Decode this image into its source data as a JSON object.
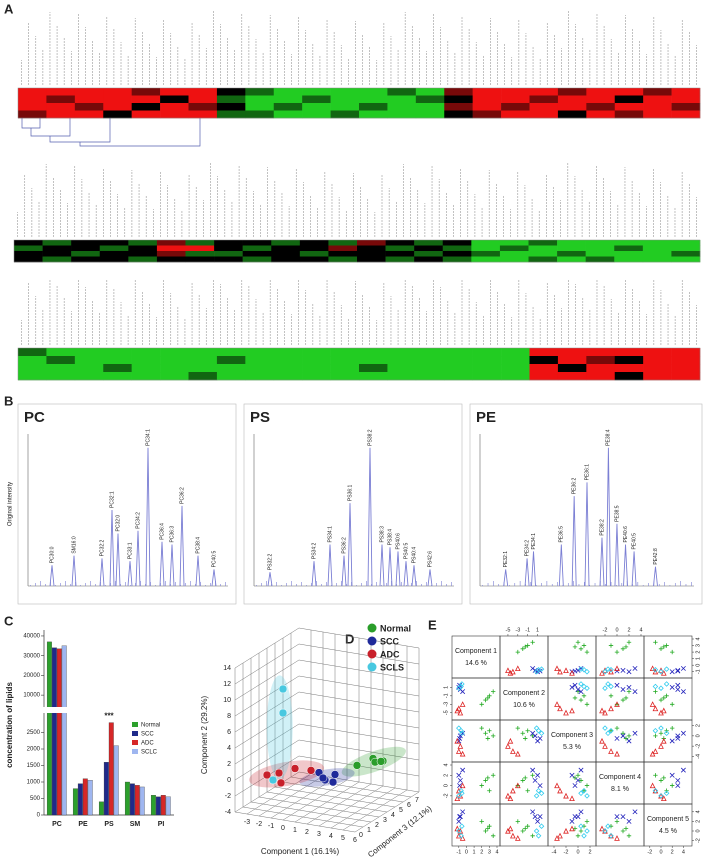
{
  "panel_labels": [
    "A",
    "B",
    "C",
    "D",
    "E"
  ],
  "chart_data": [
    {
      "type": "heatmap",
      "zlim": [
        -2,
        2
      ],
      "colors": {
        "low": "#22cc22",
        "mid": "#000000",
        "high": "#ee1111"
      },
      "blocks": [
        {
          "rows": [
            [
              2,
              2,
              2,
              2,
              1,
              2,
              2,
              0,
              -1,
              -2,
              -2,
              -2,
              -2,
              -1,
              -2,
              1,
              2,
              2,
              2,
              1,
              2,
              2,
              1,
              2
            ],
            [
              2,
              1,
              2,
              2,
              2,
              0,
              2,
              -1,
              -2,
              -2,
              -1,
              -2,
              -2,
              -2,
              -1,
              0,
              2,
              2,
              1,
              2,
              2,
              0,
              2,
              2
            ],
            [
              2,
              2,
              1,
              2,
              0,
              2,
              1,
              0,
              -2,
              -1,
              -2,
              -2,
              -1,
              -2,
              -2,
              1,
              2,
              1,
              2,
              2,
              1,
              2,
              2,
              1
            ],
            [
              1,
              2,
              2,
              0,
              2,
              2,
              2,
              -1,
              -1,
              -2,
              -2,
              -1,
              -2,
              -2,
              -2,
              0,
              1,
              2,
              2,
              0,
              2,
              1,
              2,
              2
            ]
          ]
        },
        {
          "rows": [
            [
              0,
              -1,
              0,
              0,
              -1,
              1,
              -1,
              0,
              0,
              -1,
              0,
              -1,
              1,
              0,
              -1,
              0,
              -2,
              -2,
              -1,
              -2,
              -2,
              -2,
              -2,
              -2
            ],
            [
              -1,
              0,
              0,
              -1,
              0,
              2,
              2,
              0,
              -1,
              0,
              0,
              1,
              0,
              -1,
              0,
              -1,
              -2,
              -1,
              -2,
              -2,
              -2,
              -1,
              -2,
              -2
            ],
            [
              0,
              0,
              -1,
              0,
              0,
              1,
              -1,
              -1,
              0,
              0,
              -1,
              0,
              0,
              0,
              -1,
              0,
              -1,
              -2,
              -2,
              -1,
              -2,
              -2,
              -2,
              -1
            ],
            [
              0,
              -1,
              0,
              0,
              -1,
              0,
              0,
              0,
              -1,
              0,
              0,
              -1,
              0,
              -1,
              0,
              -1,
              -2,
              -2,
              -1,
              -2,
              -1,
              -2,
              -2,
              -2
            ]
          ]
        },
        {
          "rows": [
            [
              -1,
              -2,
              -2,
              -2,
              -2,
              -2,
              -2,
              -2,
              -2,
              -2,
              -2,
              -2,
              -2,
              -2,
              -2,
              -2,
              -2,
              -2,
              2,
              2,
              2,
              2,
              2,
              2
            ],
            [
              -2,
              -1,
              -2,
              -2,
              -2,
              -2,
              -2,
              -1,
              -2,
              -2,
              -2,
              -2,
              -2,
              -2,
              -2,
              -2,
              -2,
              -2,
              0,
              2,
              1,
              0,
              2,
              2
            ],
            [
              -2,
              -2,
              -2,
              -1,
              -2,
              -2,
              -2,
              -2,
              -2,
              -2,
              -2,
              -2,
              -1,
              -2,
              -2,
              -2,
              -2,
              -2,
              2,
              0,
              2,
              2,
              2,
              2
            ],
            [
              -2,
              -2,
              -2,
              -2,
              -2,
              -2,
              -1,
              -2,
              -2,
              -2,
              -2,
              -2,
              -2,
              -2,
              -2,
              -2,
              -2,
              -2,
              2,
              2,
              2,
              0,
              2,
              2
            ]
          ]
        }
      ]
    },
    {
      "type": "spectrum",
      "title": "PC",
      "ylabel": "Original intensity",
      "color": "#7b7fd4",
      "xlim": [
        0,
        100
      ],
      "ylim": [
        0,
        110
      ],
      "x": [
        12,
        23,
        37,
        42,
        45,
        51,
        55,
        60,
        67,
        72,
        77,
        85,
        93
      ],
      "values": [
        15,
        22,
        20,
        55,
        38,
        18,
        40,
        100,
        32,
        30,
        58,
        22,
        12
      ],
      "labels": [
        "PC30:0",
        "SM16:0",
        "PC32:2",
        "PC32:1",
        "PC32:0",
        "PC33:1",
        "PC34:2",
        "PC34:1",
        "PC36:4",
        "PC36:3",
        "PC36:2",
        "PC38:4",
        "PC40:5"
      ]
    },
    {
      "type": "spectrum",
      "title": "PS",
      "color": "#7b7fd4",
      "xlim": [
        0,
        100
      ],
      "ylim": [
        0,
        110
      ],
      "x": [
        8,
        30,
        38,
        45,
        48,
        58,
        64,
        68,
        72,
        76,
        80,
        88
      ],
      "values": [
        10,
        18,
        30,
        22,
        60,
        100,
        30,
        28,
        25,
        18,
        15,
        12
      ],
      "labels": [
        "PS32:2",
        "PS34:2",
        "PS34:1",
        "PS36:2",
        "PS36:1",
        "PS38:2",
        "PS38:3",
        "PS38:4",
        "PS40:6",
        "PS40:5",
        "PS40:4",
        "PS42:6"
      ]
    },
    {
      "type": "spectrum",
      "title": "PE",
      "color": "#7b7fd4",
      "xlim": [
        0,
        100
      ],
      "ylim": [
        0,
        110
      ],
      "x": [
        12,
        22,
        25,
        38,
        44,
        50,
        57,
        60,
        64,
        68,
        72,
        82
      ],
      "values": [
        12,
        20,
        25,
        30,
        65,
        75,
        35,
        100,
        45,
        30,
        25,
        14
      ],
      "labels": [
        "PE32:1",
        "PE34:2",
        "PE34:1",
        "PE36:5",
        "PE36:2",
        "PE36:1",
        "PE38:2",
        "PE38:4",
        "PE38:5",
        "PE40:6",
        "PE40:5",
        "PE42:8"
      ]
    },
    {
      "type": "broken_bar",
      "ylabel": "concentration of lipids",
      "categories": [
        "PC",
        "PE",
        "PS",
        "SM",
        "PI"
      ],
      "segments": [
        {
          "ylim": [
            0,
            3000
          ],
          "yticks": [
            0,
            500,
            1000,
            1500,
            2000,
            2500
          ]
        },
        {
          "ylim": [
            5000,
            42000
          ],
          "yticks": [
            10000,
            20000,
            30000,
            40000
          ]
        }
      ],
      "series": [
        {
          "name": "Normal",
          "color": "#2ca02c",
          "values": [
            37000,
            800,
            400,
            1000,
            600
          ]
        },
        {
          "name": "SCC",
          "color": "#1f2a8a",
          "values": [
            34000,
            950,
            1600,
            950,
            550
          ]
        },
        {
          "name": "ADC",
          "color": "#d62728",
          "values": [
            33500,
            1100,
            2800,
            900,
            600
          ]
        },
        {
          "name": "SCLC",
          "color": "#9fb6f0",
          "values": [
            35000,
            1050,
            2100,
            850,
            550
          ]
        }
      ],
      "annotation": {
        "text": "***",
        "category": 2
      }
    },
    {
      "type": "scatter3d",
      "xlabel": "Component 1 (16.1%)",
      "ylabel": "Component 2 (29.2%)",
      "zlabel": "Component 3 (12.1%)",
      "xlim": [
        -4,
        6
      ],
      "ylim": [
        -4,
        14
      ],
      "zlim": [
        0,
        8
      ],
      "xticks": [
        -3,
        -2,
        -1,
        0,
        1,
        2,
        3,
        4,
        5,
        6
      ],
      "yticks": [
        -4,
        -2,
        0,
        2,
        4,
        6,
        8,
        10,
        12,
        14
      ],
      "zticks": [
        0,
        1,
        2,
        3,
        4,
        5,
        6,
        7
      ],
      "series": [
        {
          "name": "Normal",
          "color": "#2a9d2a",
          "points": [
            [
              3.5,
              1.2,
              4
            ],
            [
              4.5,
              2,
              4.5
            ],
            [
              5,
              1.5,
              5
            ],
            [
              4,
              0.8,
              5.5
            ],
            [
              5.5,
              2.2,
              4
            ]
          ]
        },
        {
          "name": "SCC",
          "color": "#1f2a9a",
          "points": [
            [
              1.5,
              -0.5,
              3
            ],
            [
              2,
              0,
              3.5
            ],
            [
              2.5,
              -0.2,
              2.5
            ],
            [
              1,
              0.3,
              3
            ],
            [
              2,
              0.5,
              2
            ]
          ]
        },
        {
          "name": "ADC",
          "color": "#c8202a",
          "points": [
            [
              -1,
              1,
              1
            ],
            [
              0,
              1.5,
              1.5
            ],
            [
              -2,
              0.5,
              1
            ],
            [
              1,
              1.2,
              2
            ],
            [
              -0.5,
              0.2,
              0.5
            ]
          ]
        },
        {
          "name": "SCLS",
          "color": "#48c8e0",
          "points": [
            [
              -2,
              10,
              3
            ],
            [
              -2,
              7,
              3
            ],
            [
              -1.5,
              0,
              1
            ]
          ]
        }
      ]
    },
    {
      "type": "pairs",
      "components": [
        {
          "name": "Component 1",
          "variance": "14.6 %",
          "lim": [
            -1.5,
            4
          ],
          "ticks": [
            -1,
            0,
            1,
            2,
            3,
            4
          ]
        },
        {
          "name": "Component 2",
          "variance": "10.6 %",
          "lim": [
            -6,
            2.5
          ],
          "ticks": [
            -5,
            -3,
            -1,
            1
          ]
        },
        {
          "name": "Component 3",
          "variance": "5.3 %",
          "lim": [
            -4.5,
            2.5
          ],
          "ticks": [
            -4,
            -2,
            0,
            2
          ]
        },
        {
          "name": "Component 4",
          "variance": "8.1 %",
          "lim": [
            -3,
            4
          ],
          "ticks": [
            -2,
            0,
            2,
            4
          ]
        },
        {
          "name": "Component 5",
          "variance": "4.5 %",
          "lim": [
            -2.5,
            5
          ],
          "ticks": [
            -2,
            0,
            2,
            4
          ]
        }
      ],
      "series": [
        {
          "color": "#22aa22",
          "marker": "plus",
          "points": [
            [
              2.5,
              -2,
              0.5,
              1,
              0
            ],
            [
              3,
              -1,
              1,
              -1,
              1
            ],
            [
              3.5,
              0,
              0,
              2,
              -1
            ],
            [
              2,
              -3,
              1.5,
              0,
              2
            ],
            [
              2.8,
              -1.5,
              -0.5,
              1.5,
              0.5
            ]
          ]
        },
        {
          "color": "#2222bb",
          "marker": "cross",
          "points": [
            [
              -0.8,
              0.5,
              0,
              1,
              3
            ],
            [
              -1,
              1,
              -1,
              2,
              2
            ],
            [
              -0.5,
              0,
              0.5,
              3,
              4
            ],
            [
              -0.9,
              1.5,
              -0.5,
              0,
              3
            ]
          ]
        },
        {
          "color": "#dd2222",
          "marker": "triangle",
          "points": [
            [
              -1,
              -4,
              -3,
              -1,
              -1
            ],
            [
              -0.8,
              -5,
              -2,
              -2,
              0
            ],
            [
              -0.5,
              -3,
              -3.5,
              0,
              -1.5
            ],
            [
              -1.2,
              -4.5,
              -1,
              -2.5,
              0.5
            ]
          ]
        },
        {
          "color": "#33ccee",
          "marker": "diamond",
          "points": [
            [
              -0.7,
              1.2,
              1,
              -1,
              -1
            ],
            [
              -1,
              0.8,
              1.5,
              -2,
              0
            ],
            [
              -0.6,
              1.8,
              0.5,
              -1.5,
              1
            ]
          ]
        }
      ]
    }
  ]
}
